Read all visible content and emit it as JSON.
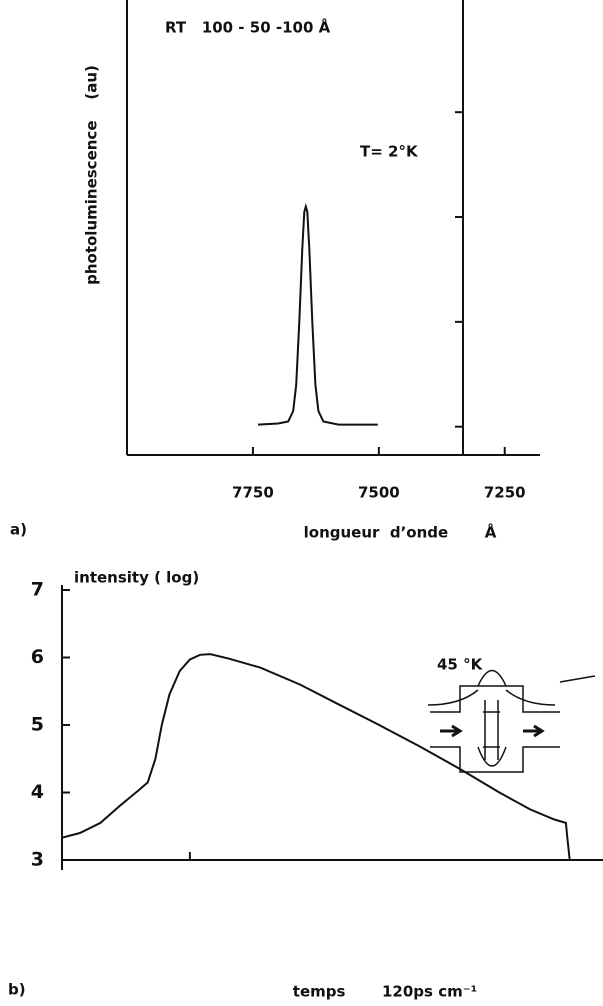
{
  "chart_data": [
    {
      "type": "line",
      "panel_label": "a)",
      "annotations": [
        "RT   100 - 50 -100 Å",
        "T= 2°K"
      ],
      "ylabel": "photoluminescence    (au)",
      "xlabel": "longueur  d’onde       Å",
      "xlim": [
        8000,
        7180
      ],
      "xticks": [
        7750,
        7500,
        7250
      ],
      "ylim": [
        -0.27,
        4.07
      ],
      "yticks": [
        0,
        1,
        2,
        3
      ],
      "color": "#111111",
      "x": [
        7740,
        7700,
        7680,
        7670,
        7664,
        7658,
        7652,
        7648,
        7645,
        7642,
        7638,
        7632,
        7626,
        7620,
        7610,
        7580,
        7502
      ],
      "values": [
        0.02,
        0.03,
        0.05,
        0.15,
        0.4,
        1.0,
        1.7,
        2.05,
        2.1,
        2.05,
        1.7,
        1.0,
        0.4,
        0.15,
        0.05,
        0.02,
        0.02
      ]
    },
    {
      "type": "line",
      "panel_label": "b)",
      "annotations": [
        "45 °K"
      ],
      "ylabel": "intensity ( log)",
      "xlabel": "temps       120ps cm⁻¹",
      "xlim": [
        0,
        4.23
      ],
      "xticks": [
        1
      ],
      "ylim": [
        3,
        7
      ],
      "yticks": [
        3,
        4,
        5,
        6,
        7
      ],
      "color": "#111111",
      "x": [
        0,
        0.14,
        0.3,
        0.45,
        0.61,
        0.67,
        0.73,
        0.78,
        0.84,
        0.92,
        1.0,
        1.08,
        1.16,
        1.31,
        1.55,
        1.86,
        2.17,
        2.48,
        2.8,
        3.11,
        3.42,
        3.66,
        3.85,
        3.94,
        3.95,
        3.97
      ],
      "values": [
        3.33,
        3.4,
        3.55,
        3.8,
        4.05,
        4.15,
        4.5,
        5.0,
        5.45,
        5.8,
        5.97,
        6.04,
        6.05,
        5.98,
        5.85,
        5.6,
        5.3,
        5.0,
        4.68,
        4.35,
        4.0,
        3.75,
        3.6,
        3.55,
        3.35,
        3.0
      ]
    }
  ]
}
